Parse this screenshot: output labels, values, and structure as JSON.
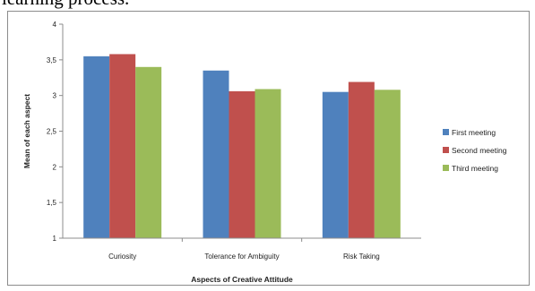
{
  "lead_text": "learning process.",
  "chart_data": {
    "type": "bar",
    "categories": [
      "Curiosity",
      "Tolerance for Ambiguity",
      "Risk Taking"
    ],
    "series": [
      {
        "name": "First meeting",
        "color": "#4f81bd",
        "values": [
          3.55,
          3.35,
          3.05
        ]
      },
      {
        "name": "Second meeting",
        "color": "#c0504d",
        "values": [
          3.58,
          3.06,
          3.19
        ]
      },
      {
        "name": "Third meeting",
        "color": "#9bbb59",
        "values": [
          3.4,
          3.09,
          3.08
        ]
      }
    ],
    "xlabel": "Aspects of Creative Attitude",
    "ylabel": "Mean of each aspect",
    "ylim": [
      1,
      4
    ],
    "yticks": [
      "1",
      "1,5",
      "2",
      "2,5",
      "3",
      "3,5",
      "4"
    ],
    "ytick_values": [
      1,
      1.5,
      2,
      2.5,
      3,
      3.5,
      4
    ],
    "grid": false,
    "legend_position": "right"
  }
}
